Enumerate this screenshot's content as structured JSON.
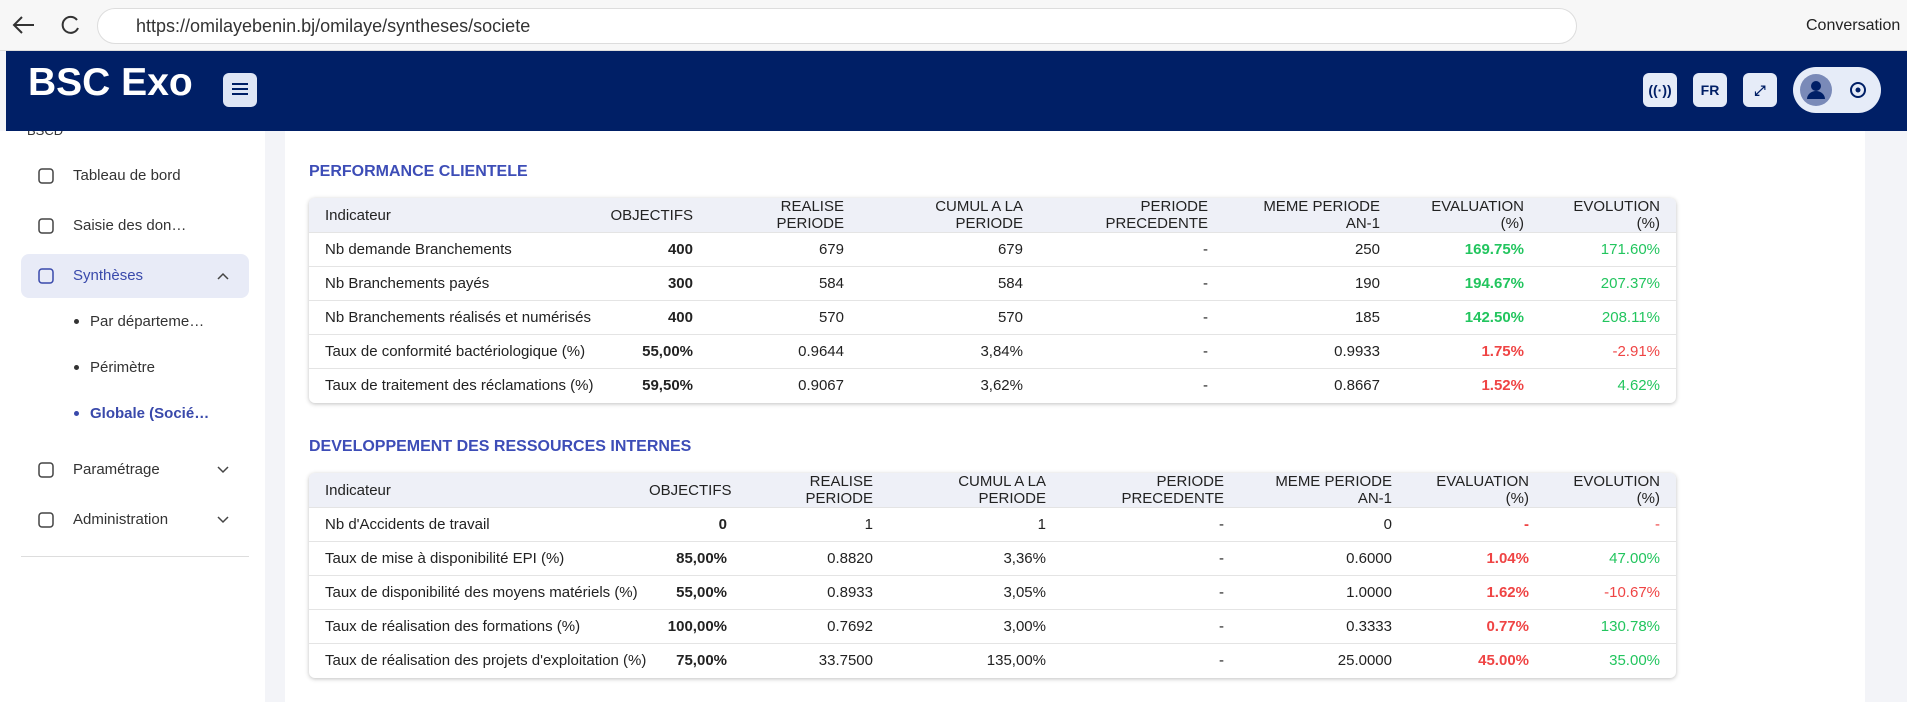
{
  "browser": {
    "url": "https://omilayebenin.bj/omilaye/syntheses/societe",
    "copilot": "Conversation"
  },
  "header": {
    "title": "BSC Exo",
    "lang": "FR"
  },
  "sidebar": {
    "group": "BSCD",
    "items": [
      {
        "label": "Tableau de bord"
      },
      {
        "label": "Saisie des don…"
      },
      {
        "label": "Synthèses",
        "active": true,
        "expanded": true,
        "children": [
          {
            "label": "Par départeme…"
          },
          {
            "label": "Périmètre"
          },
          {
            "label": "Globale (Socié…",
            "active": true
          }
        ]
      },
      {
        "label": "Paramétrage",
        "expandable": true
      },
      {
        "label": "Administration",
        "expandable": true
      }
    ]
  },
  "sections": [
    {
      "title": "PERFORMANCE CLIENTELE",
      "columns": [
        "Indicateur",
        "OBJECTIFS",
        "REALISE PERIODE",
        "CUMUL A LA PERIODE",
        "PERIODE PRECEDENTE",
        "MEME PERIODE AN-1",
        "EVALUATION (%)",
        "EVOLUTION (%)"
      ],
      "rows": [
        [
          "Nb demande Branchements",
          "400",
          "679",
          "679",
          "-",
          "250",
          "169.75%",
          "171.60%"
        ],
        [
          "Nb Branchements payés",
          "300",
          "584",
          "584",
          "-",
          "190",
          "194.67%",
          "207.37%"
        ],
        [
          "Nb Branchements réalisés et numérisés",
          "400",
          "570",
          "570",
          "-",
          "185",
          "142.50%",
          "208.11%"
        ],
        [
          "Taux de conformité bactériologique (%)",
          "55,00%",
          "0.9644",
          "3,84%",
          "-",
          "0.9933",
          "1.75%",
          "-2.91%"
        ],
        [
          "Taux de traitement des réclamations (%)",
          "59,50%",
          "0.9067",
          "3,62%",
          "-",
          "0.8667",
          "1.52%",
          "4.62%"
        ]
      ],
      "evaluation_colors": [
        "#22c55e",
        "#22c55e",
        "#22c55e",
        "#ef4444",
        "#ef4444"
      ],
      "evolution_colors": [
        "#22c55e",
        "#22c55e",
        "#22c55e",
        "#ef4444",
        "#22c55e"
      ]
    },
    {
      "title": "DEVELOPPEMENT DES RESSOURCES INTERNES",
      "columns": [
        "Indicateur",
        "OBJECTIFS",
        "REALISE PERIODE",
        "CUMUL A LA PERIODE",
        "PERIODE PRECEDENTE",
        "MEME PERIODE AN-1",
        "EVALUATION (%)",
        "EVOLUTION (%)"
      ],
      "rows": [
        [
          "Nb d'Accidents de travail",
          "0",
          "1",
          "1",
          "-",
          "0",
          "-",
          "-"
        ],
        [
          "Taux de mise à disponibilité EPI (%)",
          "85,00%",
          "0.8820",
          "3,36%",
          "-",
          "0.6000",
          "1.04%",
          "47.00%"
        ],
        [
          "Taux de disponibilité des moyens matériels (%)",
          "55,00%",
          "0.8933",
          "3,05%",
          "-",
          "1.0000",
          "1.62%",
          "-10.67%"
        ],
        [
          "Taux de réalisation des formations (%)",
          "100,00%",
          "0.7692",
          "3,00%",
          "-",
          "0.3333",
          "0.77%",
          "130.78%"
        ],
        [
          "Taux de réalisation des projets d'exploitation (%)",
          "75,00%",
          "33.7500",
          "135,00%",
          "-",
          "25.0000",
          "45.00%",
          "35.00%"
        ]
      ],
      "evaluation_colors": [
        "#ef4444",
        "#ef4444",
        "#ef4444",
        "#ef4444",
        "#ef4444"
      ],
      "evolution_colors": [
        "#ef4444",
        "#22c55e",
        "#ef4444",
        "#22c55e",
        "#22c55e"
      ]
    }
  ]
}
